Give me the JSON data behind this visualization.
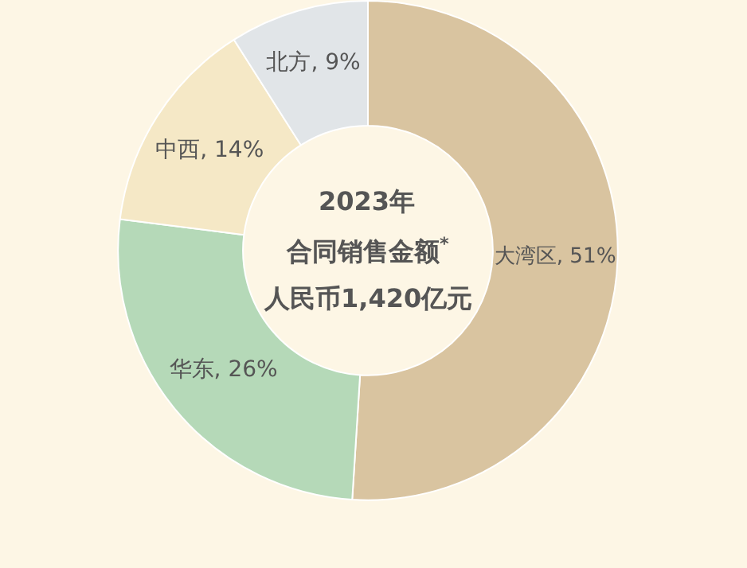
{
  "chart_data": {
    "type": "donut",
    "categories": [
      "大湾区",
      "华东",
      "中西",
      "北方"
    ],
    "values": [
      51,
      26,
      14,
      9
    ],
    "value_labels": [
      "51%",
      "26%",
      "14%",
      "9%"
    ],
    "colors": [
      "#d9c4a0",
      "#b5d9b8",
      "#f5e8c6",
      "#e1e5e8"
    ],
    "legend": false,
    "annotations": [
      "2023年",
      "合同销售金额$^{*}$",
      "人民币1,420亿元"
    ]
  }
}
